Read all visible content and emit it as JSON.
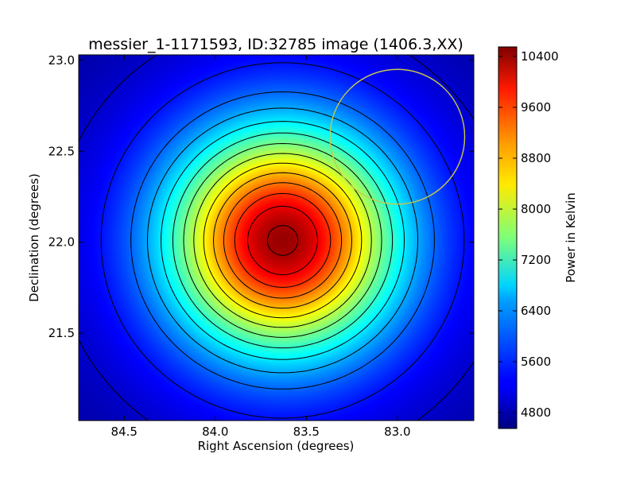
{
  "chart_data": {
    "type": "heatmap",
    "title": "messier_1-1171593, ID:32785 image (1406.3,XX)",
    "xlabel": "Right Ascension (degrees)",
    "ylabel": "Declination (degrees)",
    "xlim": [
      84.75,
      82.58
    ],
    "ylim": [
      21.02,
      23.03
    ],
    "x_ticks": [
      84.5,
      84.0,
      83.5,
      83.0
    ],
    "x_tick_labels": [
      "84.5",
      "84.0",
      "83.5",
      "83.0"
    ],
    "y_ticks": [
      21.5,
      22.0,
      22.5,
      23.0
    ],
    "y_tick_labels": [
      "21.5",
      "22.0",
      "22.5",
      "23.0"
    ],
    "colorbar": {
      "label": "Power in Kelvin",
      "range": [
        4550,
        10550
      ],
      "ticks": [
        4800,
        5600,
        6400,
        7200,
        8000,
        8800,
        9600,
        10400
      ],
      "tick_labels": [
        "4800",
        "5600",
        "6400",
        "7200",
        "8000",
        "8800",
        "9600",
        "10400"
      ],
      "colormap": "jet"
    },
    "source": {
      "ra": 83.63,
      "dec": 22.01,
      "peak": 10400,
      "floor": 4550,
      "sigma_deg": 0.42
    },
    "contour_levels": [
      5000,
      5400,
      5900,
      6300,
      6700,
      7100,
      7500,
      7900,
      8300,
      8700,
      9100,
      9500,
      9900,
      10300
    ],
    "circle": {
      "ra": 83.0,
      "dec": 22.58,
      "radius_deg": 0.37,
      "color": "#c8c84a"
    }
  }
}
